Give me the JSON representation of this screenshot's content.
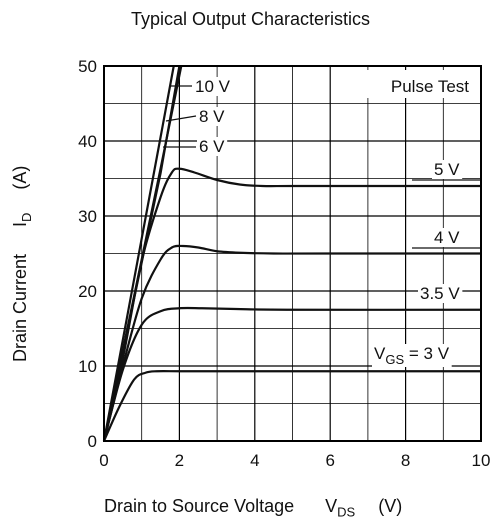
{
  "chart_data": {
    "type": "line",
    "title": "Typical Output Characteristics",
    "xlabel": "Drain to Source Voltage",
    "xlabel_symbol": "V",
    "xlabel_symbol_sub": "DS",
    "xlabel_unit": "(V)",
    "ylabel": "Drain Current",
    "ylabel_symbol": "I",
    "ylabel_symbol_sub": "D",
    "ylabel_unit": "(A)",
    "xlim": [
      0,
      10
    ],
    "ylim": [
      0,
      50
    ],
    "xticks": [
      "0",
      "2",
      "4",
      "6",
      "8",
      "10"
    ],
    "yticks": [
      "0",
      "10",
      "20",
      "30",
      "40",
      "50"
    ],
    "grid": true,
    "annotation": "Pulse Test",
    "series": [
      {
        "name": "10 V",
        "x": [
          0,
          1.5,
          2.05
        ],
        "y": [
          0,
          36.3,
          50
        ]
      },
      {
        "name": "8 V",
        "x": [
          0,
          1.5,
          2.0
        ],
        "y": [
          0,
          35.7,
          50
        ]
      },
      {
        "name": "6 V",
        "x": [
          0,
          1.5,
          1.85
        ],
        "y": [
          0,
          40.5,
          50
        ]
      },
      {
        "name": "5 V",
        "x": [
          0,
          0.5,
          1.0,
          1.5,
          1.8,
          2.0,
          2.4,
          3.0,
          3.6,
          4.2,
          5.0,
          7.0,
          10.0
        ],
        "y": [
          0,
          11,
          24,
          32.5,
          35.8,
          36.3,
          35.8,
          34.8,
          34.2,
          34.0,
          34.0,
          34.0,
          34.0
        ]
      },
      {
        "name": "4 V",
        "x": [
          0,
          0.5,
          1.0,
          1.5,
          1.8,
          2.1,
          2.5,
          3.0,
          3.6,
          4.5,
          6.0,
          10.0
        ],
        "y": [
          0,
          10,
          19,
          24.2,
          25.8,
          26.0,
          25.8,
          25.3,
          25.1,
          25.0,
          25.0,
          25.0
        ]
      },
      {
        "name": "3.5 V",
        "x": [
          0,
          0.5,
          1.0,
          1.5,
          2.0,
          2.6,
          3.5,
          5.0,
          10.0
        ],
        "y": [
          0,
          9.5,
          15.5,
          17.3,
          17.7,
          17.7,
          17.6,
          17.5,
          17.5
        ]
      },
      {
        "name": "3 V",
        "x": [
          0,
          0.4,
          0.8,
          1.1,
          1.4,
          2.0,
          3.0,
          10.0
        ],
        "y": [
          0,
          4.5,
          8.2,
          9.1,
          9.3,
          9.3,
          9.3,
          9.3
        ]
      }
    ],
    "curve_labels": [
      {
        "series": "10 V",
        "text": "10 V"
      },
      {
        "series": "8 V",
        "text": "8 V"
      },
      {
        "series": "6 V",
        "text": "6 V"
      },
      {
        "series": "5 V",
        "text": "5 V"
      },
      {
        "series": "4 V",
        "text": "4 V"
      },
      {
        "series": "3.5 V",
        "text": "3.5 V"
      },
      {
        "series": "3 V",
        "text_main": "V",
        "text_sub": "GS",
        "text_tail": " = 3 V"
      }
    ]
  }
}
